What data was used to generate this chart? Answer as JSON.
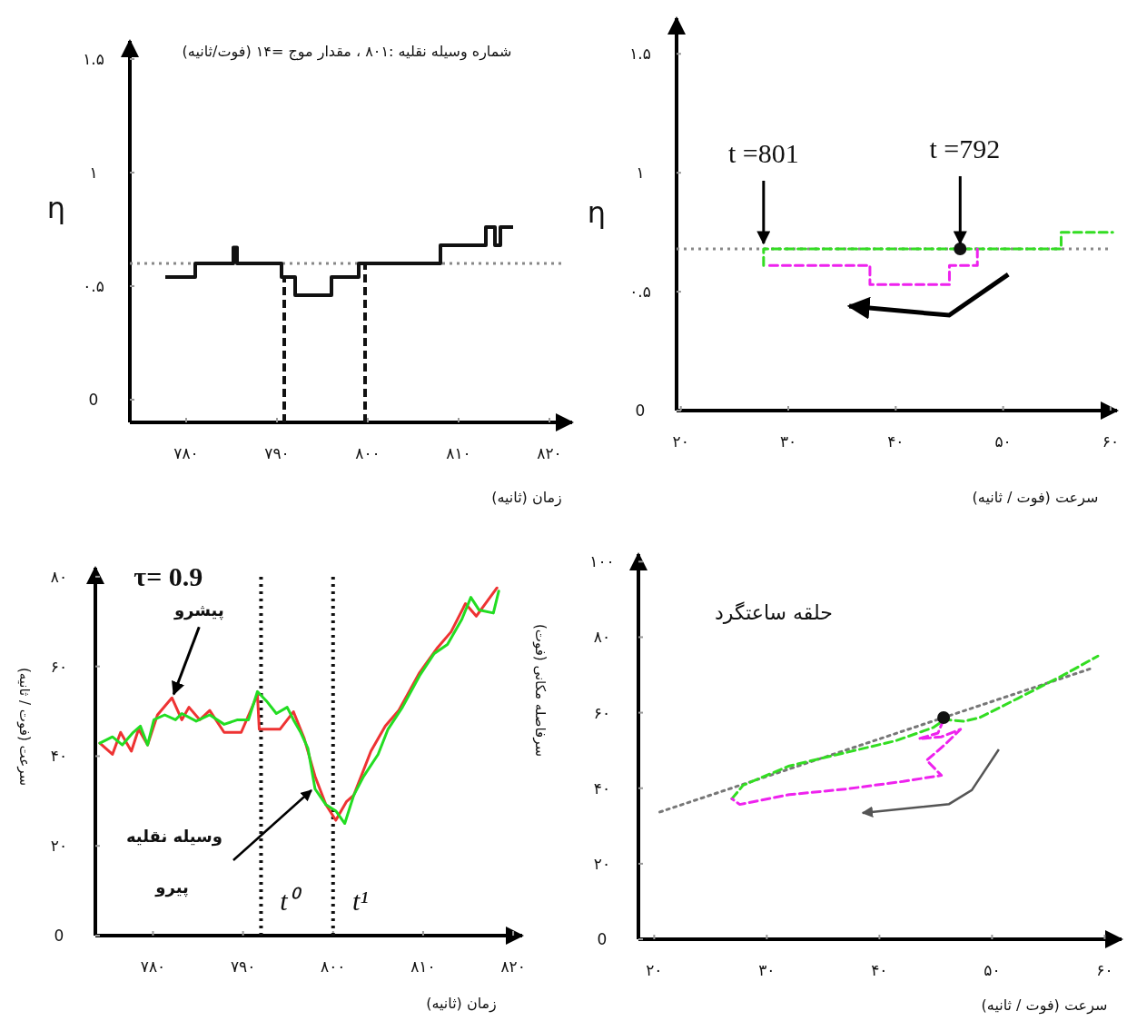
{
  "chart_data": [
    {
      "type": "step",
      "title": "شماره وسیله نقلیه :۸۰۱ ، مقدار موج =۱۴ (فوت/ثانیه)",
      "xlabel": "زمان (ثانیه)",
      "ylabel": "η",
      "xlim": [
        773.8,
        822.5
      ],
      "ylim": [
        -0.1,
        1.58
      ],
      "xticks": [
        {
          "value": 780,
          "label": "۷۸۰"
        },
        {
          "value": 790,
          "label": "۷۹۰"
        },
        {
          "value": 800,
          "label": "۸۰۰"
        },
        {
          "value": 810,
          "label": "۸۱۰"
        },
        {
          "value": 820,
          "label": "۸۲۰"
        }
      ],
      "yticks": [
        {
          "value": 0,
          "label": "0"
        },
        {
          "value": 0.5,
          "label": "۰.۵"
        },
        {
          "value": 1,
          "label": "۱"
        },
        {
          "value": 1.5,
          "label": "۱.۵"
        }
      ],
      "series": [
        {
          "color": "#111111",
          "line_style": "solid",
          "x": [
            777.7,
            781,
            785.2,
            785.6,
            790.5,
            792,
            796,
            799,
            808,
            813,
            814,
            814.6,
            816
          ],
          "values": [
            0.54,
            0.6,
            0.67,
            0.6,
            0.54,
            0.46,
            0.54,
            0.6,
            0.68,
            0.76,
            0.68,
            0.76,
            0.76
          ]
        }
      ],
      "ref_lines": [
        {
          "axis": "y",
          "value": 0.6,
          "color": "#888888",
          "line_style": "dotted"
        },
        {
          "axis": "x",
          "value": 790.8,
          "color": "#111111",
          "line_style": "dashed"
        },
        {
          "axis": "x",
          "value": 799.7,
          "color": "#111111",
          "line_style": "dashed"
        }
      ]
    },
    {
      "type": "line",
      "xlabel": "سرعت (فوت / ثانیه)",
      "ylabel": "η",
      "xlim": [
        19.6,
        60.6
      ],
      "ylim": [
        0,
        1.65
      ],
      "xticks": [
        {
          "value": 20,
          "label": "۲۰"
        },
        {
          "value": 30,
          "label": "۳۰"
        },
        {
          "value": 40,
          "label": "۴۰"
        },
        {
          "value": 50,
          "label": "۵۰"
        },
        {
          "value": 60,
          "label": "۶۰"
        }
      ],
      "yticks": [
        {
          "value": 0,
          "label": "0"
        },
        {
          "value": 0.5,
          "label": "۰.۵"
        },
        {
          "value": 1,
          "label": "۱"
        },
        {
          "value": 1.5,
          "label": "۱.۵"
        }
      ],
      "series": [
        {
          "color": "#33dd22",
          "line_style": "dashed",
          "x": [
            27.7,
            27.7,
            55.4,
            55.4,
            60.2
          ],
          "values": [
            0.61,
            0.68,
            0.68,
            0.75,
            0.75
          ]
        },
        {
          "color": "#ee22ee",
          "line_style": "dashed",
          "x": [
            47.6,
            47.6,
            45.0,
            45.0,
            37.6,
            37.6,
            27.9
          ],
          "values": [
            0.68,
            0.61,
            0.61,
            0.53,
            0.53,
            0.61,
            0.61
          ]
        },
        {
          "type": "scatter",
          "color": "#111111",
          "marker": "circle",
          "x": [
            46
          ],
          "values": [
            0.68
          ]
        }
      ],
      "ref_lines": [
        {
          "axis": "y",
          "value": 0.68,
          "color": "#888888",
          "line_style": "dotted"
        }
      ],
      "annotations": [
        {
          "text": "t =801",
          "x": 27.7,
          "y": 0.68
        },
        {
          "text": "t =792",
          "x": 46,
          "y": 0.68
        }
      ]
    },
    {
      "type": "line",
      "xlabel": "زمان (ثانیه)",
      "ylabel": "سرعت (فوت / ثانیه)",
      "xlim": [
        773.6,
        821
      ],
      "ylim": [
        0,
        82
      ],
      "xticks": [
        {
          "value": 780,
          "label": "۷۸۰"
        },
        {
          "value": 790,
          "label": "۷۹۰"
        },
        {
          "value": 800,
          "label": "۸۰۰"
        },
        {
          "value": 810,
          "label": "۸۱۰"
        },
        {
          "value": 820,
          "label": "۸۲۰"
        }
      ],
      "yticks": [
        {
          "value": 0,
          "label": "0"
        },
        {
          "value": 20,
          "label": "۲۰"
        },
        {
          "value": 40,
          "label": "۴۰"
        },
        {
          "value": 60,
          "label": "۶۰"
        },
        {
          "value": 80,
          "label": "۸۰"
        }
      ],
      "series": [
        {
          "color": "#ee3333",
          "line_style": "solid",
          "x": [
            774.1,
            775.5,
            776.4,
            777.6,
            778.4,
            779.4,
            780.5,
            782.1,
            783.2,
            784.0,
            785.2,
            786.3,
            787.9,
            789.8,
            791.6,
            791.8,
            794.1,
            795.6,
            796.8,
            798.0,
            799.2,
            800.3,
            801.5,
            802.3,
            804.2,
            805.8,
            807.3,
            809.6,
            811.6,
            813.1,
            814.7,
            815.9,
            818.2
          ],
          "values": [
            42.9,
            40.4,
            45.3,
            41.1,
            46.0,
            42.5,
            49.2,
            53.0,
            48.1,
            50.9,
            48.1,
            50.2,
            45.3,
            45.3,
            53.7,
            46.0,
            46.0,
            49.9,
            43.9,
            35.5,
            29.2,
            25.7,
            29.9,
            31.3,
            41.1,
            46.7,
            50.2,
            58.6,
            64.2,
            67.7,
            74.0,
            71.2,
            77.5
          ]
        },
        {
          "color": "#22dd22",
          "line_style": "solid",
          "x": [
            774.1,
            775.5,
            776.6,
            777.8,
            778.6,
            779.4,
            780.1,
            781.3,
            782.5,
            783.2,
            784.8,
            786.3,
            787.9,
            789.4,
            790.6,
            791.6,
            792.6,
            793.7,
            794.9,
            795.6,
            796.4,
            797.2,
            798.0,
            799.2,
            800.3,
            801.3,
            802.3,
            803.4,
            805.0,
            806.1,
            807.7,
            809.6,
            811.2,
            812.7,
            814.3,
            815.3,
            816.2,
            817.8,
            818.4
          ],
          "values": [
            42.9,
            44.3,
            42.5,
            45.3,
            46.7,
            42.5,
            48.1,
            49.2,
            48.1,
            49.5,
            47.8,
            49.2,
            47.1,
            48.1,
            48.1,
            54.4,
            52.3,
            49.5,
            50.9,
            48.1,
            45.3,
            41.8,
            32.7,
            29.2,
            27.8,
            25.0,
            31.3,
            35.5,
            40.4,
            46.0,
            50.9,
            57.9,
            62.8,
            64.9,
            70.5,
            75.4,
            72.6,
            71.9,
            76.8
          ]
        }
      ],
      "ref_lines": [
        {
          "axis": "x",
          "value": 792,
          "label": "t⁰",
          "color": "#111111",
          "line_style": "dotted"
        },
        {
          "axis": "x",
          "value": 800,
          "label": "t¹",
          "color": "#111111",
          "line_style": "dotted"
        }
      ],
      "annotations": [
        "τ= 0.9",
        {
          "text": "پیشرو",
          "x": 782.1,
          "y": 53.0
        },
        {
          "text": "وسیله نقلیه",
          "x": 798,
          "y": 33
        },
        "پیرو"
      ]
    },
    {
      "type": "line",
      "xlabel": "سرعت (فوت / ثانیه)",
      "ylabel": "سرفاصله مکانی (فوت)",
      "xlim": [
        18.6,
        61.5
      ],
      "ylim": [
        0,
        102
      ],
      "xticks": [
        {
          "value": 20,
          "label": "۲۰"
        },
        {
          "value": 30,
          "label": "۳۰"
        },
        {
          "value": 40,
          "label": "۴۰"
        },
        {
          "value": 50,
          "label": "۵۰"
        },
        {
          "value": 60,
          "label": "۶۰"
        }
      ],
      "yticks": [
        {
          "value": 0,
          "label": "0"
        },
        {
          "value": 20,
          "label": "۲۰"
        },
        {
          "value": 40,
          "label": "۴۰"
        },
        {
          "value": 60,
          "label": "۶۰"
        },
        {
          "value": 80,
          "label": "۸۰"
        },
        {
          "value": 100,
          "label": "۱۰۰"
        }
      ],
      "series": [
        {
          "color": "#777777",
          "line_style": "dotted",
          "x": [
            20.5,
            59.0
          ],
          "values": [
            33.7,
            71.9
          ]
        },
        {
          "color": "#33dd22",
          "line_style": "dashed",
          "x": [
            26.9,
            27.9,
            32.0,
            37.1,
            41.5,
            44.8,
            45.8,
            47.5,
            48.9,
            52.3,
            56.3,
            59.4
          ],
          "values": [
            37.2,
            40.8,
            45.9,
            49.5,
            52.6,
            56.1,
            58.2,
            57.7,
            58.7,
            63.8,
            69.9,
            75.0
          ]
        },
        {
          "color": "#ee22ee",
          "line_style": "dashed",
          "x": [
            45.7,
            45.2,
            43.5,
            45.5,
            47.2,
            45.8,
            44.2,
            45.5,
            42.1,
            37.1,
            32.0,
            27.6,
            26.9
          ],
          "values": [
            58.2,
            54.6,
            53.1,
            53.6,
            55.6,
            51.5,
            47.4,
            43.4,
            41.8,
            39.8,
            38.3,
            35.7,
            37.2
          ]
        },
        {
          "type": "scatter",
          "color": "#111111",
          "marker": "circle",
          "x": [
            45.7
          ],
          "values": [
            58.7
          ]
        }
      ],
      "annotations": [
        "حلقه ساعتگرد"
      ]
    }
  ]
}
